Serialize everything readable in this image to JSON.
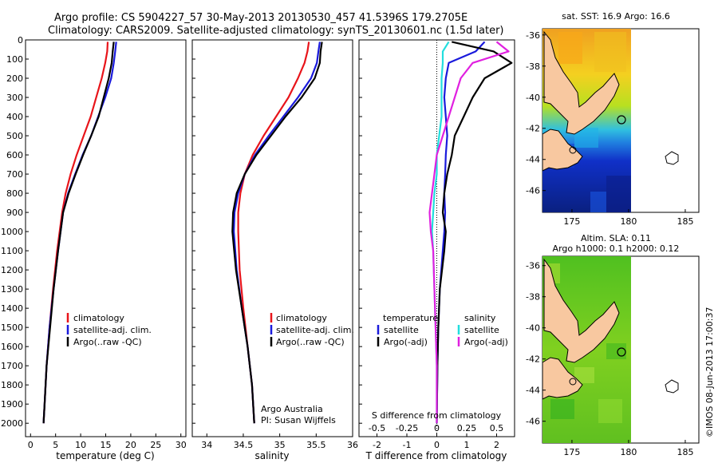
{
  "header": {
    "line1": "Argo profile: CS 5904227_57 30-May-2013 20130530_457 41.5396S 179.2705E",
    "line2": "Climatology: CARS2009. Satellite-adjusted climatology: synTS_20130601.nc (1.5d later)"
  },
  "colors": {
    "climatology": "#e8141a",
    "satellite_adj": "#1a1adc",
    "argo": "#000000",
    "salinity_satellite": "#22dede",
    "salinity_argo_adj": "#e020e0",
    "land": "#f8c8a0"
  },
  "chart_data": [
    {
      "type": "line",
      "name": "temperature-panel",
      "xlabel": "temperature (deg C)",
      "ylabel": "",
      "xlim": [
        -1,
        31
      ],
      "ylim": [
        2070,
        0
      ],
      "xticks": [
        0,
        5,
        10,
        15,
        20,
        25,
        30
      ],
      "yticks": [
        0,
        100,
        200,
        300,
        400,
        500,
        600,
        700,
        800,
        900,
        1000,
        1100,
        1200,
        1300,
        1400,
        1500,
        1600,
        1700,
        1800,
        1900,
        2000
      ],
      "legend": {
        "position": "center-right",
        "entries": [
          "climatology",
          "satellite-adj. clim.",
          "Argo(..raw -QC)"
        ]
      },
      "series": [
        {
          "name": "climatology",
          "color": "#e8141a",
          "x": [
            15.4,
            15.3,
            14.9,
            14.2,
            13.1,
            12.0,
            10.6,
            9.2,
            8.0,
            7.0,
            6.3,
            5.3,
            4.5,
            3.8,
            3.2,
            2.8,
            2.6
          ],
          "y": [
            10,
            60,
            120,
            200,
            300,
            400,
            500,
            600,
            700,
            800,
            900,
            1100,
            1300,
            1500,
            1700,
            1900,
            2000
          ]
        },
        {
          "name": "satellite-adj. clim.",
          "color": "#1a1adc",
          "x": [
            17.1,
            16.9,
            16.6,
            16.1,
            14.9,
            13.5,
            12.1,
            10.4,
            8.9,
            7.5,
            6.5,
            5.5,
            4.6,
            3.8,
            3.2,
            2.8,
            2.6
          ],
          "y": [
            10,
            60,
            120,
            200,
            300,
            400,
            500,
            600,
            700,
            800,
            900,
            1100,
            1300,
            1500,
            1700,
            1900,
            2000
          ]
        },
        {
          "name": "Argo(..raw -QC)",
          "color": "#000000",
          "x": [
            16.6,
            16.4,
            16.2,
            15.6,
            14.6,
            13.6,
            12.1,
            10.5,
            9.0,
            7.6,
            6.5,
            5.5,
            4.6,
            3.9,
            3.2,
            2.8,
            2.6
          ],
          "y": [
            10,
            60,
            120,
            200,
            300,
            400,
            500,
            600,
            700,
            800,
            900,
            1100,
            1300,
            1500,
            1700,
            1900,
            2000
          ]
        }
      ]
    },
    {
      "type": "line",
      "name": "salinity-panel",
      "xlabel": "salinity",
      "ylabel": "",
      "xlim": [
        33.8,
        36.0
      ],
      "ylim": [
        2070,
        0
      ],
      "xticks": [
        34,
        34.5,
        35,
        35.5,
        36
      ],
      "xticklabels": [
        "34",
        "34.5",
        "35",
        "35.5",
        "36"
      ],
      "legend": {
        "position": "center-right",
        "entries": [
          "climatology",
          "satellite-adj. clim.",
          "Argo(..raw -QC)"
        ]
      },
      "annotations": [
        "Argo Australia",
        "PI: Susan Wijffels"
      ],
      "series": [
        {
          "name": "climatology",
          "color": "#e8141a",
          "x": [
            35.4,
            35.38,
            35.34,
            35.25,
            35.12,
            34.95,
            34.78,
            34.63,
            34.52,
            34.46,
            34.43,
            34.43,
            34.45,
            34.5,
            34.56,
            34.62,
            34.65
          ],
          "y": [
            10,
            60,
            120,
            200,
            300,
            400,
            500,
            600,
            700,
            800,
            900,
            1000,
            1200,
            1400,
            1600,
            1800,
            2000
          ]
        },
        {
          "name": "satellite-adj. clim.",
          "color": "#1a1adc",
          "x": [
            35.55,
            35.53,
            35.51,
            35.43,
            35.25,
            35.05,
            34.85,
            34.66,
            34.52,
            34.43,
            34.38,
            34.37,
            34.41,
            34.48,
            34.56,
            34.62,
            34.65
          ],
          "y": [
            10,
            60,
            120,
            200,
            300,
            400,
            500,
            600,
            700,
            800,
            900,
            1000,
            1200,
            1400,
            1600,
            1800,
            2000
          ]
        },
        {
          "name": "Argo(..raw -QC)",
          "color": "#000000",
          "x": [
            35.58,
            35.56,
            35.55,
            35.48,
            35.3,
            35.08,
            34.88,
            34.68,
            34.52,
            34.41,
            34.36,
            34.35,
            34.4,
            34.48,
            34.56,
            34.62,
            34.65
          ],
          "y": [
            10,
            60,
            120,
            200,
            300,
            400,
            500,
            600,
            700,
            800,
            900,
            1000,
            1200,
            1400,
            1600,
            1800,
            2000
          ]
        }
      ]
    },
    {
      "type": "line",
      "name": "difference-panel",
      "xlabel": "T difference from climatology",
      "top_label": "S difference from climatology",
      "xlim": [
        -2.6,
        2.6
      ],
      "ylim": [
        2070,
        0
      ],
      "xticks": [
        -2,
        -1,
        0,
        1,
        2
      ],
      "top_xticks": [
        -0.5,
        -0.25,
        0,
        0.25,
        0.5
      ],
      "legend_titles": [
        "temperature",
        "salinity"
      ],
      "legend_entries": [
        "satellite",
        "Argo(-adj)",
        "satellite",
        "Argo(-adj)"
      ],
      "series": [
        {
          "name": "T satellite",
          "color": "#1a1adc",
          "x": [
            1.6,
            1.3,
            0.4,
            0.3,
            0.25,
            0.3,
            0.35,
            0.3,
            0.28,
            0.25,
            0.28,
            0.25,
            0.2,
            0.1,
            0.05,
            0.02,
            0.0
          ],
          "y": [
            10,
            60,
            120,
            200,
            300,
            400,
            500,
            600,
            700,
            800,
            900,
            1000,
            1100,
            1300,
            1500,
            1700,
            2000
          ]
        },
        {
          "name": "T Argo(-adj)",
          "color": "#000000",
          "x": [
            0.5,
            1.9,
            2.5,
            1.6,
            1.2,
            0.9,
            0.6,
            0.5,
            0.35,
            0.25,
            0.2,
            0.3,
            0.25,
            0.1,
            0.05,
            0.02,
            0.0
          ],
          "y": [
            10,
            60,
            120,
            200,
            300,
            400,
            500,
            600,
            700,
            800,
            900,
            1000,
            1100,
            1300,
            1500,
            1700,
            2000
          ]
        },
        {
          "name": "S satellite",
          "color": "#22dede",
          "x": [
            0.1,
            0.05,
            0.05,
            0.04,
            0.04,
            0.04,
            0.02,
            0.0,
            0.0,
            -0.02,
            -0.03,
            -0.04,
            -0.03,
            -0.02,
            -0.01,
            0.0,
            0.0
          ],
          "y": [
            10,
            60,
            120,
            200,
            300,
            400,
            500,
            600,
            700,
            800,
            900,
            1000,
            1100,
            1300,
            1500,
            1700,
            2000
          ]
        },
        {
          "name": "S Argo(-adj)",
          "color": "#e020e0",
          "x": [
            0.5,
            0.6,
            0.3,
            0.2,
            0.15,
            0.1,
            0.05,
            0.0,
            -0.02,
            -0.04,
            -0.06,
            -0.05,
            -0.03,
            -0.02,
            -0.01,
            0.0,
            0.0
          ],
          "y": [
            10,
            60,
            120,
            200,
            300,
            400,
            500,
            600,
            700,
            800,
            900,
            1000,
            1100,
            1300,
            1500,
            1700,
            2000
          ]
        }
      ]
    }
  ],
  "maps": [
    {
      "name": "sst-map",
      "title": "sat. SST: 16.9 Argo: 16.6",
      "lon_ticks": [
        175,
        180,
        185
      ],
      "lat_ticks": [
        -36,
        -38,
        -40,
        -42,
        -44,
        -46
      ],
      "lon_labels": [
        "175",
        "180",
        "185"
      ],
      "lat_labels": [
        "-36",
        "-38",
        "-40",
        "-42",
        "-44",
        "-46"
      ]
    },
    {
      "name": "sla-map",
      "title": "Altim. SLA: 0.11",
      "subtitle": "Argo h1000: 0.1 h2000: 0.12",
      "lon_ticks": [
        175,
        180,
        185
      ],
      "lat_ticks": [
        -36,
        -38,
        -40,
        -42,
        -44,
        -46
      ],
      "lon_labels": [
        "175",
        "180",
        "185"
      ],
      "lat_labels": [
        "-36",
        "-38",
        "-40",
        "-42",
        "-44",
        "-46"
      ]
    }
  ],
  "footer": {
    "stamp": "©IMOS 08-Jun-2013 17:00:37"
  }
}
